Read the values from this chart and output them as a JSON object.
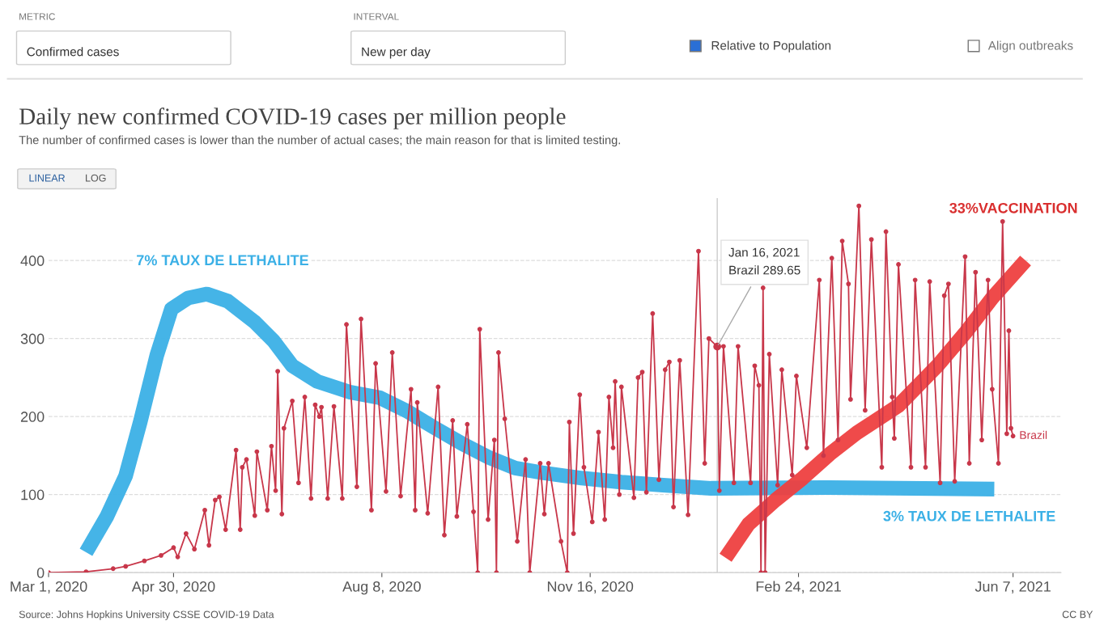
{
  "chart_data": {
    "type": "line",
    "title": "Daily new confirmed COVID-19 cases per million people",
    "subtitle": "The number of confirmed cases is lower than the number of actual cases; the main reason for that is limited testing.",
    "xlim": [
      "2020-03-01",
      "2021-06-30"
    ],
    "ylim": [
      0,
      480
    ],
    "xticks": [
      {
        "value": "2020-03-01",
        "label": "Mar 1, 2020"
      },
      {
        "value": "2020-04-30",
        "label": "Apr 30, 2020"
      },
      {
        "value": "2020-08-08",
        "label": "Aug 8, 2020"
      },
      {
        "value": "2020-11-16",
        "label": "Nov 16, 2020"
      },
      {
        "value": "2021-02-24",
        "label": "Feb 24, 2021"
      },
      {
        "value": "2021-06-07",
        "label": "Jun 7, 2021"
      }
    ],
    "yticks": [
      0,
      100,
      200,
      300,
      400
    ],
    "grid": "y",
    "legend": false,
    "marker": "circle",
    "series": [
      {
        "name": "Brazil",
        "color": "#c8374a",
        "x": [
          "2020-03-01",
          "2020-03-19",
          "2020-04-01",
          "2020-04-07",
          "2020-04-16",
          "2020-04-24",
          "2020-04-30",
          "2020-05-02",
          "2020-05-06",
          "2020-05-10",
          "2020-05-15",
          "2020-05-17",
          "2020-05-20",
          "2020-05-22",
          "2020-05-25",
          "2020-05-30",
          "2020-06-01",
          "2020-06-02",
          "2020-06-04",
          "2020-06-08",
          "2020-06-09",
          "2020-06-14",
          "2020-06-16",
          "2020-06-18",
          "2020-06-19",
          "2020-06-21",
          "2020-06-22",
          "2020-06-26",
          "2020-06-29",
          "2020-07-02",
          "2020-07-05",
          "2020-07-07",
          "2020-07-09",
          "2020-07-10",
          "2020-07-13",
          "2020-07-16",
          "2020-07-20",
          "2020-07-22",
          "2020-07-27",
          "2020-07-29",
          "2020-08-03",
          "2020-08-05",
          "2020-08-10",
          "2020-08-13",
          "2020-08-17",
          "2020-08-22",
          "2020-08-24",
          "2020-08-25",
          "2020-08-30",
          "2020-09-04",
          "2020-09-07",
          "2020-09-11",
          "2020-09-13",
          "2020-09-18",
          "2020-09-21",
          "2020-09-23",
          "2020-09-24",
          "2020-09-28",
          "2020-10-01",
          "2020-10-02",
          "2020-10-03",
          "2020-10-06",
          "2020-10-12",
          "2020-10-16",
          "2020-10-18",
          "2020-10-23",
          "2020-10-25",
          "2020-10-27",
          "2020-11-02",
          "2020-11-05",
          "2020-11-06",
          "2020-11-08",
          "2020-11-11",
          "2020-11-13",
          "2020-11-17",
          "2020-11-20",
          "2020-11-23",
          "2020-11-25",
          "2020-11-27",
          "2020-11-28",
          "2020-11-30",
          "2020-12-01",
          "2020-12-07",
          "2020-12-09",
          "2020-12-11",
          "2020-12-13",
          "2020-12-16",
          "2020-12-19",
          "2020-12-22",
          "2020-12-24",
          "2020-12-26",
          "2020-12-29",
          "2021-01-02",
          "2021-01-07",
          "2021-01-10",
          "2021-01-12",
          "2021-01-16",
          "2021-01-17",
          "2021-01-19",
          "2021-01-24",
          "2021-01-26",
          "2021-02-01",
          "2021-02-03",
          "2021-02-05",
          "2021-02-06",
          "2021-02-07",
          "2021-02-08",
          "2021-02-10",
          "2021-02-14",
          "2021-02-16",
          "2021-02-21",
          "2021-02-23",
          "2021-02-28",
          "2021-03-06",
          "2021-03-08",
          "2021-03-12",
          "2021-03-15",
          "2021-03-17",
          "2021-03-20",
          "2021-03-21",
          "2021-03-25",
          "2021-03-28",
          "2021-03-31",
          "2021-04-05",
          "2021-04-07",
          "2021-04-10",
          "2021-04-11",
          "2021-04-13",
          "2021-04-19",
          "2021-04-21",
          "2021-04-26",
          "2021-04-28",
          "2021-05-03",
          "2021-05-05",
          "2021-05-07",
          "2021-05-10",
          "2021-05-15",
          "2021-05-17",
          "2021-05-20",
          "2021-05-23",
          "2021-05-26",
          "2021-05-28",
          "2021-05-31",
          "2021-06-02",
          "2021-06-04",
          "2021-06-05",
          "2021-06-06",
          "2021-06-07"
        ],
        "values": [
          0,
          1,
          5,
          8,
          15,
          22,
          32,
          20,
          50,
          30,
          80,
          35,
          93,
          97,
          55,
          157,
          55,
          135,
          145,
          73,
          155,
          80,
          162,
          105,
          258,
          75,
          185,
          220,
          115,
          225,
          95,
          215,
          200,
          212,
          95,
          213,
          95,
          318,
          110,
          325,
          80,
          268,
          104,
          282,
          98,
          235,
          80,
          218,
          76,
          238,
          48,
          195,
          72,
          190,
          78,
          0,
          312,
          68,
          170,
          0,
          282,
          197,
          40,
          145,
          0,
          140,
          75,
          140,
          40,
          0,
          193,
          50,
          228,
          135,
          65,
          180,
          68,
          225,
          160,
          245,
          100,
          238,
          96,
          250,
          257,
          103,
          332,
          119,
          260,
          270,
          84,
          272,
          74,
          412,
          140,
          300,
          289.65,
          105,
          290,
          115,
          290,
          115,
          265,
          240,
          0,
          365,
          0,
          280,
          112,
          260,
          125,
          252,
          160,
          375,
          150,
          403,
          170,
          425,
          370,
          222,
          470,
          208,
          427,
          135,
          437,
          225,
          172,
          395,
          135,
          375,
          135,
          373,
          115,
          355,
          370,
          117,
          405,
          140,
          385,
          170,
          375,
          235,
          140,
          450,
          178,
          310,
          185,
          175
        ]
      },
      {
        "color": "#3bb0e6",
        "marker": "none",
        "x": [
          "2020-03-19",
          "2020-03-29",
          "2020-04-07",
          "2020-04-14",
          "2020-04-22",
          "2020-04-29",
          "2020-05-07",
          "2020-05-16",
          "2020-05-26",
          "2020-06-08",
          "2020-06-17",
          "2020-06-26",
          "2020-07-08",
          "2020-07-24",
          "2020-08-07",
          "2020-08-20",
          "2020-09-02",
          "2020-09-15",
          "2020-09-28",
          "2020-10-11",
          "2020-10-24",
          "2020-11-12",
          "2020-12-01",
          "2020-12-21",
          "2021-01-13",
          "2021-03-11",
          "2021-05-29"
        ],
        "values": [
          26,
          72,
          124,
          193,
          279,
          338,
          352,
          357,
          348,
          321,
          297,
          265,
          245,
          231,
          224,
          207,
          186,
          166,
          148,
          134,
          128,
          121,
          116,
          112,
          108,
          109,
          107
        ]
      },
      {
        "color": "#ee4040",
        "marker": "none",
        "x": [
          "2021-01-20",
          "2021-01-31",
          "2021-02-13",
          "2021-02-26",
          "2021-03-11",
          "2021-03-24",
          "2021-04-13",
          "2021-05-02",
          "2021-05-15",
          "2021-05-28",
          "2021-06-13"
        ],
        "values": [
          19,
          62,
          93,
          121,
          152,
          179,
          214,
          266,
          307,
          352,
          400
        ]
      }
    ],
    "ref_lines": [
      {
        "axis": "x",
        "value": "2021-01-16",
        "color": "#cccccc"
      }
    ],
    "annotations": [
      "METRIC",
      "Confirmed cases",
      "INTERVAL",
      "New per day",
      "Relative to Population",
      "Align outbreaks",
      "LINEAR",
      "LOG",
      "7% TAUX DE LETHALITE",
      "33%VACCINATION",
      "3% TAUX DE LETHALITE",
      {
        "text": "Jan 16, 2021\nBrazil 289.65",
        "x": "2021-01-16",
        "y": 289.65
      },
      "Source: Johns Hopkins University CSSE COVID-19 Data",
      "CC BY"
    ]
  }
}
